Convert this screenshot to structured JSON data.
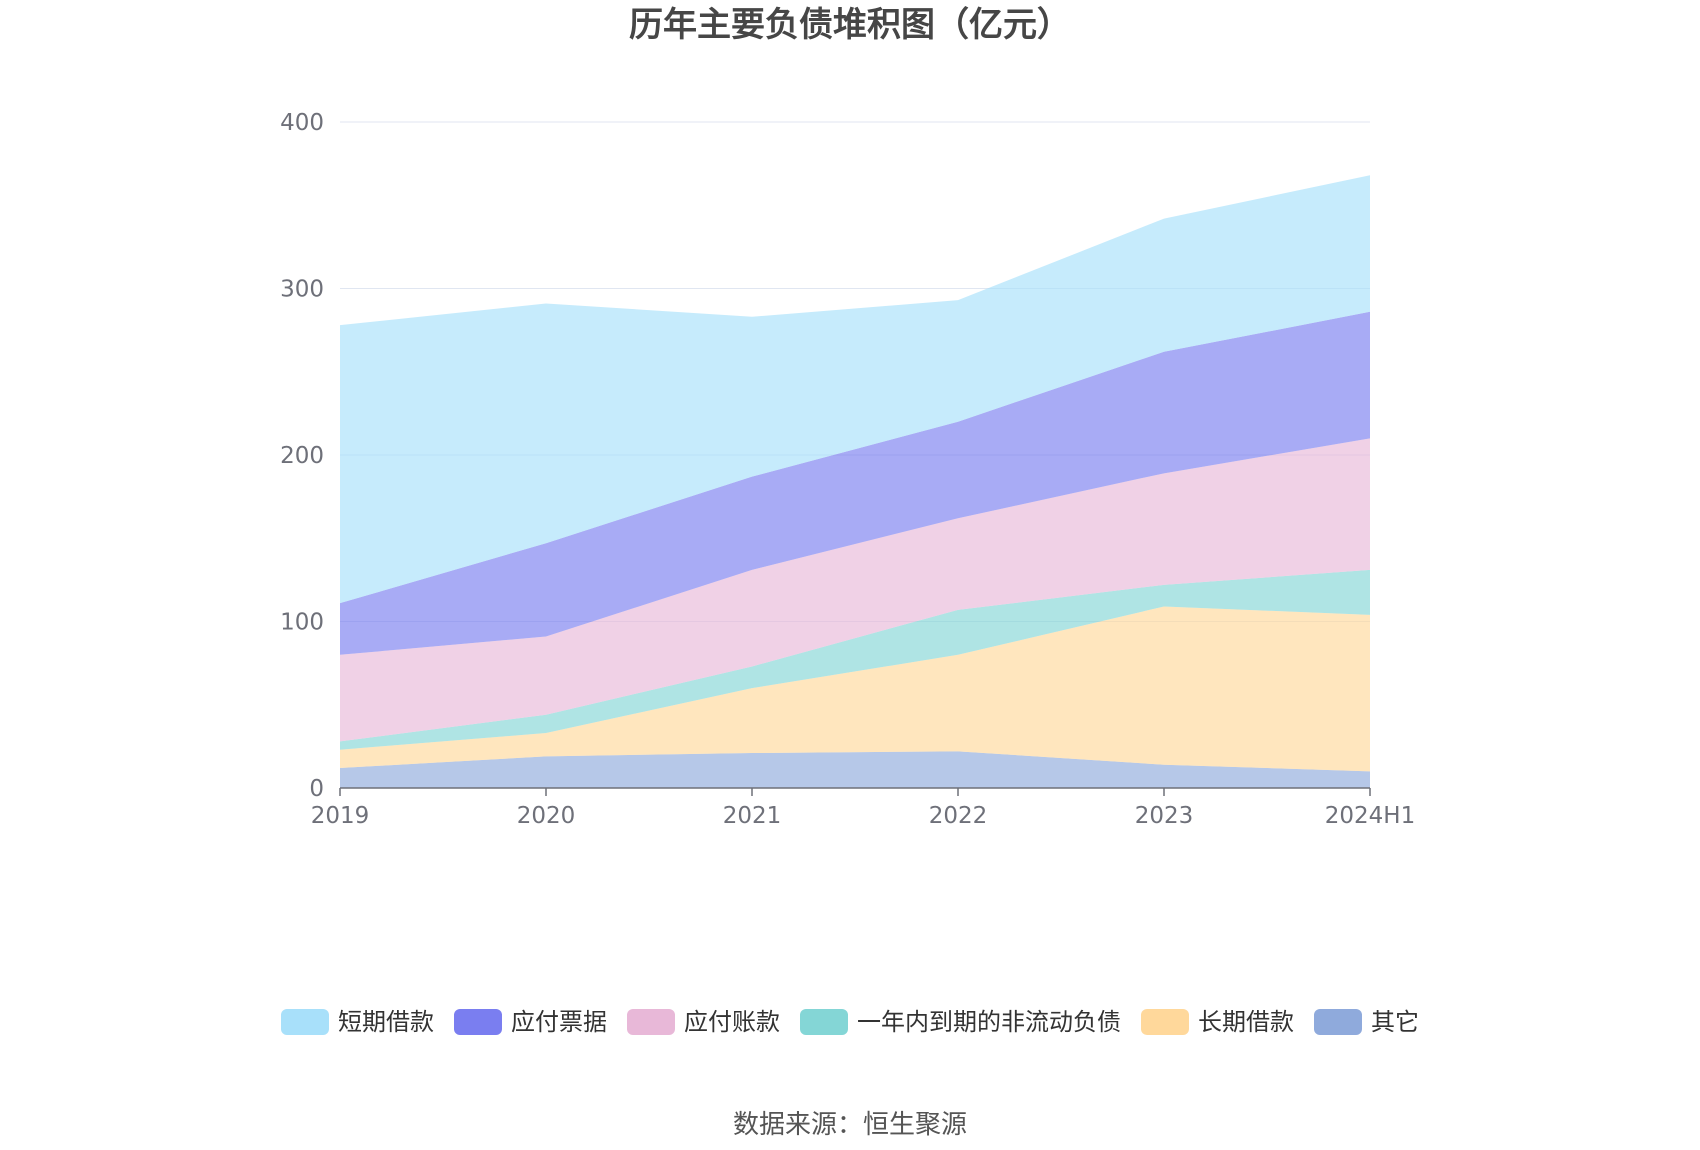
{
  "chart_data": {
    "type": "area",
    "stacked": true,
    "title": "历年主要负债堆积图（亿元）",
    "source": "数据来源：恒生聚源",
    "categories": [
      "2019",
      "2020",
      "2021",
      "2022",
      "2023",
      "2024H1"
    ],
    "yticks": [
      "0",
      "100",
      "200",
      "300",
      "400"
    ],
    "ylim": [
      0,
      400
    ],
    "grid": true,
    "legend_position": "bottom",
    "series": [
      {
        "name": "其它",
        "color": "#8faadc",
        "values": [
          12,
          19,
          21,
          22,
          14,
          10
        ]
      },
      {
        "name": "长期借款",
        "color": "#ffd89b",
        "values": [
          11,
          14,
          39,
          58,
          95,
          94
        ]
      },
      {
        "name": "一年内到期的非流动负债",
        "color": "#84d6d6",
        "values": [
          5,
          11,
          13,
          27,
          13,
          27
        ]
      },
      {
        "name": "应付账款",
        "color": "#e8b8d8",
        "values": [
          52,
          47,
          58,
          55,
          67,
          79
        ]
      },
      {
        "name": "应付票据",
        "color": "#7a7ef0",
        "values": [
          31,
          56,
          56,
          58,
          73,
          76
        ]
      },
      {
        "name": "短期借款",
        "color": "#a8e0fa",
        "values": [
          167,
          144,
          96,
          73,
          80,
          82
        ]
      }
    ],
    "legend_order": [
      "短期借款",
      "应付票据",
      "应付账款",
      "一年内到期的非流动负债",
      "长期借款",
      "其它"
    ]
  }
}
